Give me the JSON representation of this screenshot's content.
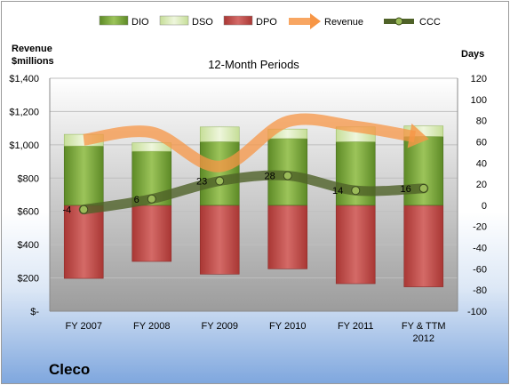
{
  "chart_data": {
    "type": "bar",
    "title": "12-Month Periods",
    "company": "Cleco",
    "y_left_label": [
      "Revenue",
      "$millions"
    ],
    "y_right_label": "Days",
    "categories": [
      "FY 2007",
      "FY 2008",
      "FY 2009",
      "FY 2010",
      "FY 2011",
      "FY & TTM 2012"
    ],
    "y_left_ticks": [
      "$-",
      "$200",
      "$400",
      "$600",
      "$800",
      "$1,000",
      "$1,200",
      "$1,400"
    ],
    "y_left_lim": [
      0,
      1400
    ],
    "y_right_ticks": [
      "-100",
      "-80",
      "-60",
      "-40",
      "-20",
      "0",
      "20",
      "40",
      "60",
      "80",
      "100",
      "120"
    ],
    "y_right_lim": [
      -100,
      120
    ],
    "legend": [
      {
        "name": "DIO",
        "kind": "bar",
        "color": "#76a13c"
      },
      {
        "name": "DSO",
        "kind": "bar",
        "color": "#d8e9b8"
      },
      {
        "name": "DPO",
        "kind": "bar",
        "color": "#c0504d"
      },
      {
        "name": "Revenue",
        "kind": "arrow",
        "color": "#f79646"
      },
      {
        "name": "CCC",
        "kind": "line-marker",
        "color": "#4f6228"
      }
    ],
    "series": [
      {
        "name": "DPO",
        "axis": "right",
        "values": [
          -69,
          -53,
          -65,
          -60,
          -74,
          -77
        ]
      },
      {
        "name": "DIO",
        "axis": "right",
        "values": [
          56,
          51,
          60,
          63,
          60,
          65
        ]
      },
      {
        "name": "DSO",
        "axis": "right",
        "values": [
          11,
          8,
          14,
          9,
          14,
          10
        ]
      },
      {
        "name": "Revenue",
        "axis": "left",
        "values": [
          1030,
          1075,
          870,
          1140,
          1110,
          1040
        ]
      },
      {
        "name": "CCC",
        "axis": "right",
        "values": [
          -4,
          6,
          23,
          28,
          14,
          16
        ]
      }
    ],
    "ccc_labels": [
      "-4",
      "6",
      "23",
      "28",
      "14",
      "16"
    ],
    "colors": {
      "plot_top": "#ffffff",
      "plot_bottom": "#9c9c9c",
      "grid": "#bfbfbf"
    }
  }
}
